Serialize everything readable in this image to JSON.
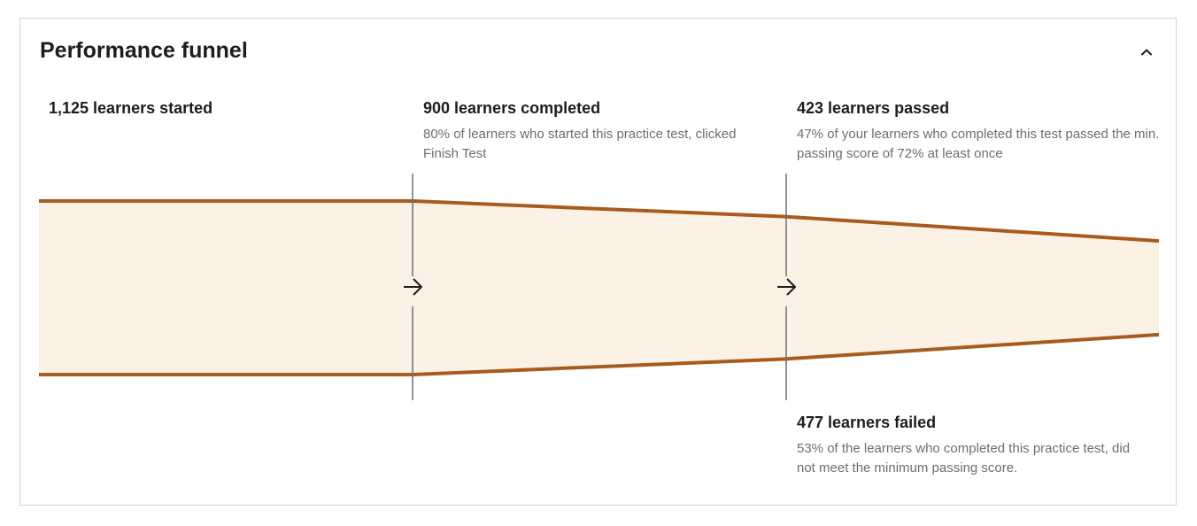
{
  "card": {
    "title": "Performance funnel",
    "collapse_icon": "chevron-up-icon",
    "colors": {
      "stroke": "#a85b1d",
      "fill": "#fbf2e5",
      "divider": "#6a6f73",
      "text": "#1c1d1f",
      "muted": "#6a6f73",
      "border": "#d1d2e0"
    }
  },
  "stages": [
    {
      "heading": "1,125 learners started",
      "description": ""
    },
    {
      "heading": "900 learners completed",
      "description": "80% of learners who started this practice test, clicked Finish Test"
    },
    {
      "heading": "423 learners passed",
      "description": "47% of your learners who completed this test passed the min. passing score of 72% at least once"
    },
    {
      "heading": "477 learners failed",
      "description": "53% of the learners who completed this practice test, did not meet the minimum passing score."
    }
  ],
  "chart_data": {
    "type": "area",
    "title": "Performance funnel",
    "categories": [
      "started",
      "completed",
      "passed / failed"
    ],
    "values": [
      1125,
      900,
      423
    ],
    "failed": 477,
    "percentages": {
      "completed_of_started": 80,
      "passed_of_completed": 47,
      "failed_of_completed": 53,
      "min_passing_score": 72
    },
    "separator_icon": "arrow-right-icon"
  }
}
